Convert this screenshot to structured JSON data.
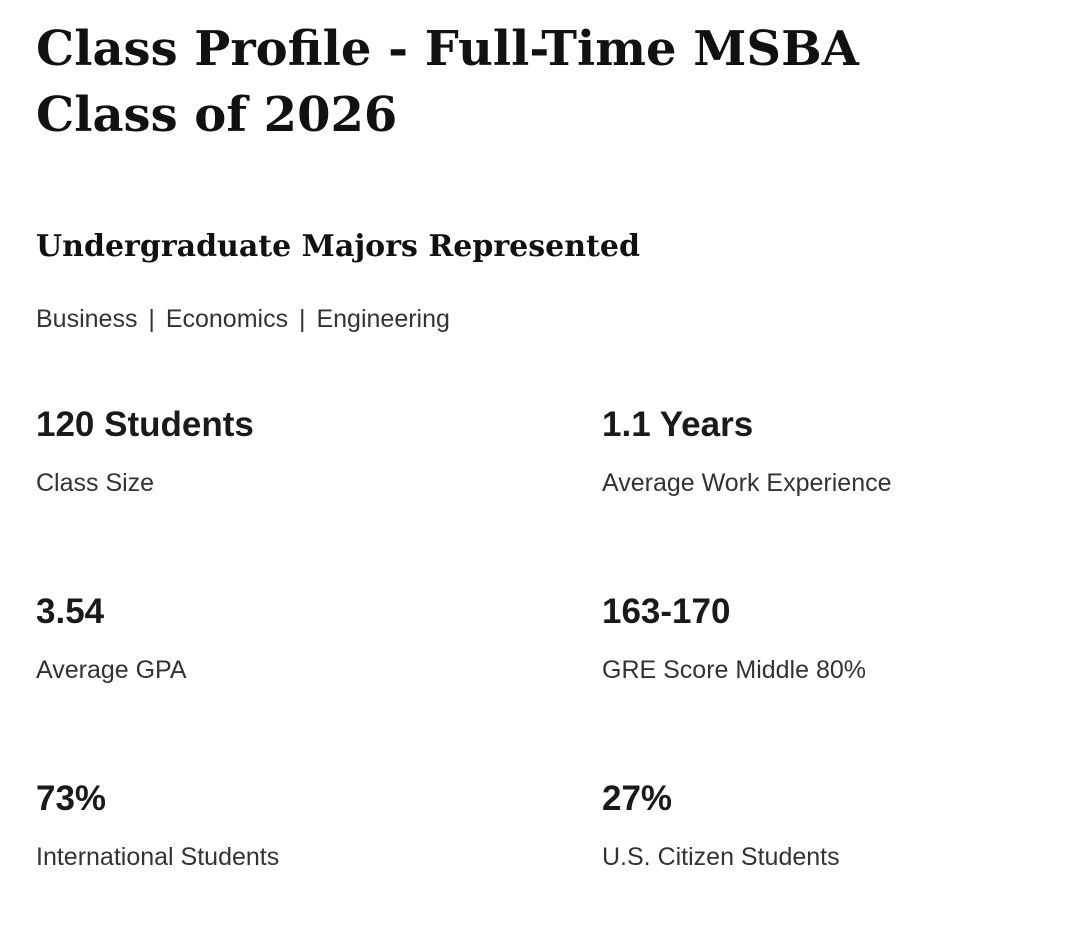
{
  "page": {
    "title": "Class Profile - Full-Time MSBA Class of 2026"
  },
  "majors_section": {
    "heading": "Undergraduate Majors Represented",
    "majors_line": "Business | Economics | Engineering",
    "majors": [
      "Business",
      "Economics",
      "Engineering"
    ]
  },
  "stats": [
    {
      "value": "120 Students",
      "label": "Class Size"
    },
    {
      "value": "1.1 Years",
      "label": "Average Work Experience"
    },
    {
      "value": "3.54",
      "label": "Average GPA"
    },
    {
      "value": "163-170",
      "label": "GRE Score Middle 80%"
    },
    {
      "value": "73%",
      "label": "International Students"
    },
    {
      "value": "27%",
      "label": "U.S. Citizen Students"
    }
  ],
  "colors": {
    "background": "#ffffff",
    "text_primary": "#111111",
    "stat_value": "#1a1a1a",
    "text_secondary": "#333333"
  }
}
